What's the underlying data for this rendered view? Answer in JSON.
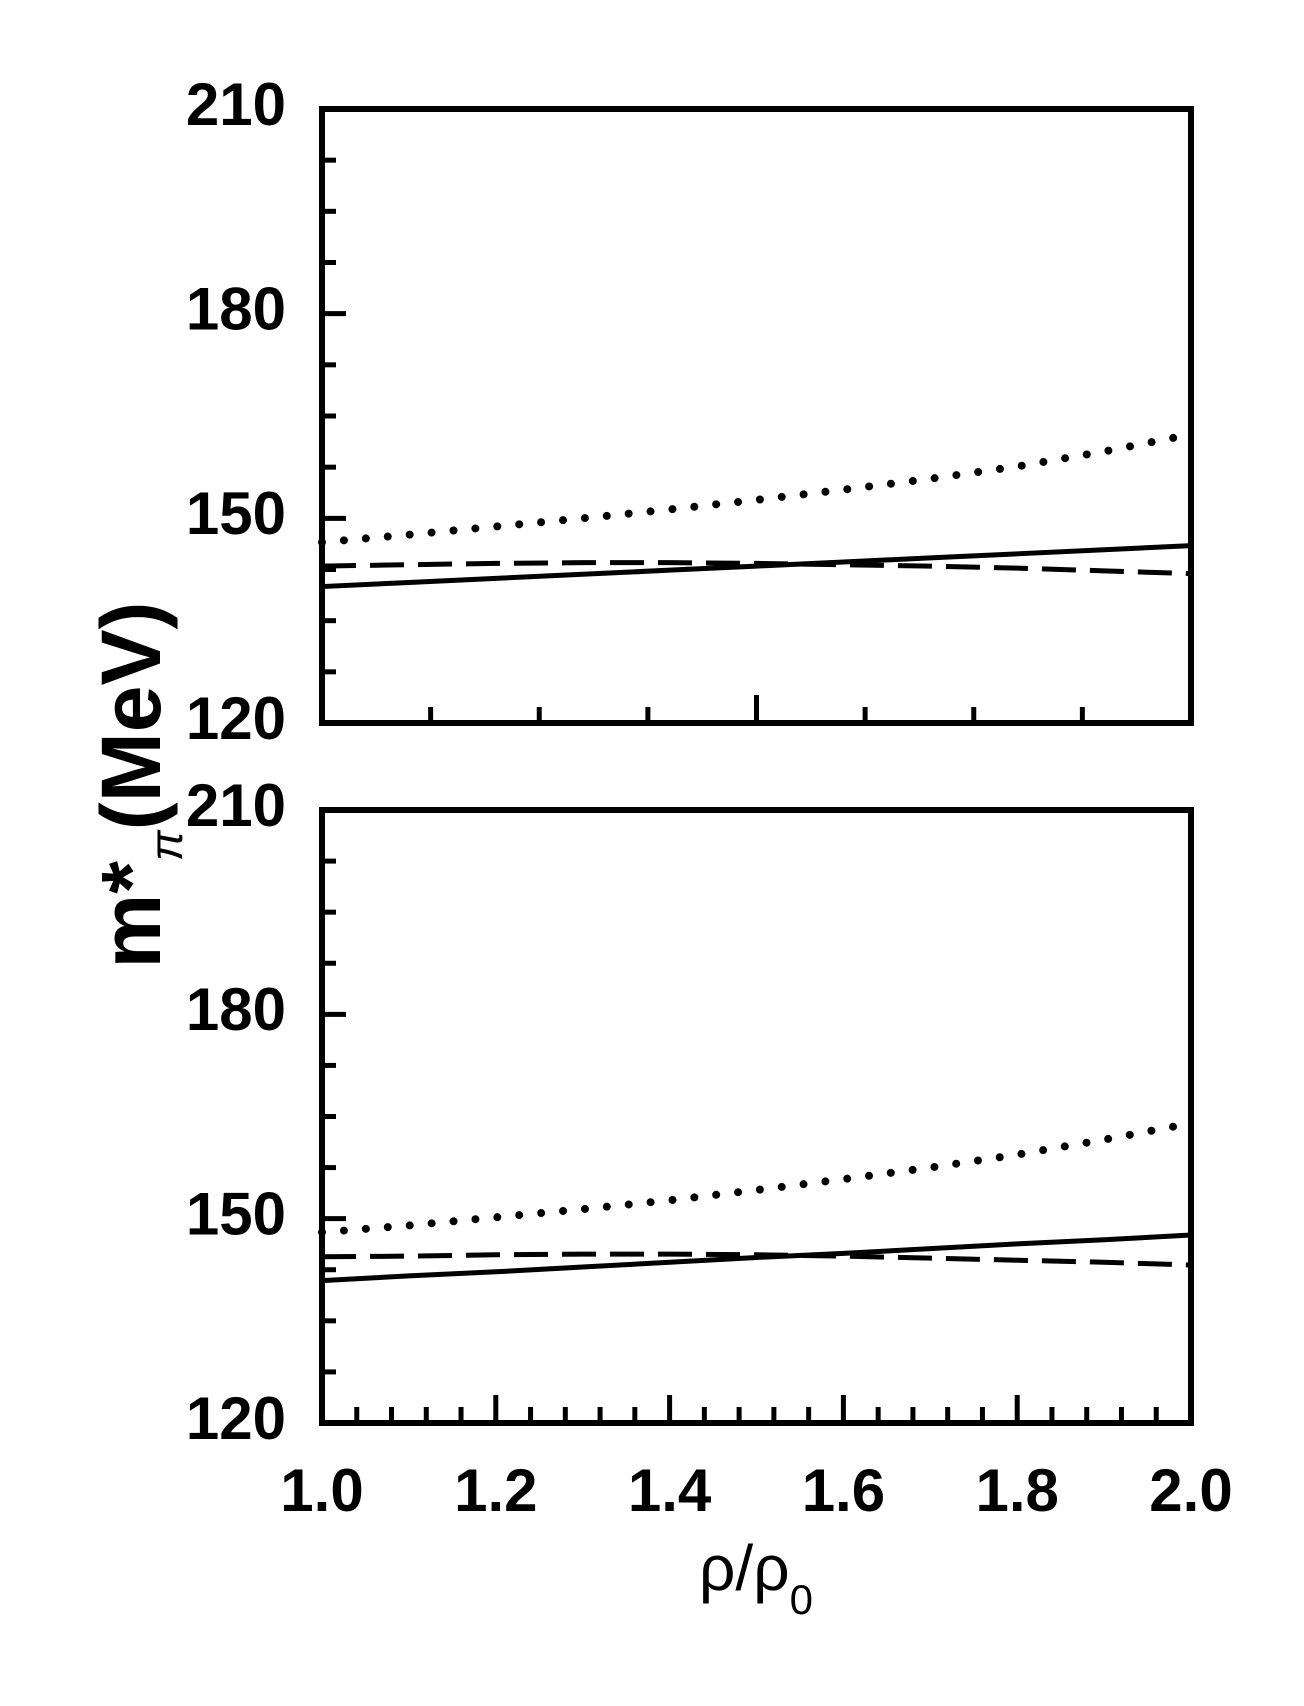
{
  "chart_data": [
    {
      "type": "line",
      "y_label": {
        "main": "m*",
        "sub": "π",
        "unit": "(MeV)"
      },
      "x": [
        1.0,
        1.1,
        1.2,
        1.3,
        1.4,
        1.5,
        1.6,
        1.7,
        1.8,
        1.9,
        2.0
      ],
      "series": [
        {
          "color": "#000000",
          "style": "solid",
          "values": [
            140.0,
            140.6,
            141.2,
            141.8,
            142.4,
            143.0,
            143.6,
            144.2,
            144.8,
            145.4,
            146.0
          ]
        },
        {
          "color": "#000000",
          "style": "dashed",
          "values": [
            143.0,
            143.2,
            143.4,
            143.5,
            143.5,
            143.4,
            143.2,
            143.0,
            142.7,
            142.3,
            141.9
          ]
        },
        {
          "color": "#000000",
          "style": "dotted",
          "values": [
            146.5,
            147.6,
            148.8,
            150.0,
            151.3,
            152.7,
            154.2,
            155.8,
            157.6,
            159.8,
            162.3
          ]
        }
      ],
      "xlim": [
        1.0,
        2.0
      ],
      "xticks": [
        1.5
      ],
      "xminor": [
        1.125,
        1.25,
        1.375,
        1.625,
        1.75,
        1.875
      ],
      "xtick_labels": false,
      "ylim": [
        120,
        210
      ],
      "yticks": [
        120,
        150,
        180,
        210
      ],
      "yminor": [
        127.5,
        135,
        142.5,
        157.5,
        165,
        172.5,
        187.5,
        195,
        202.5
      ]
    },
    {
      "type": "line",
      "x_label": {
        "main": "ρ/ρ",
        "sub": "0"
      },
      "x": [
        1.0,
        1.1,
        1.2,
        1.3,
        1.4,
        1.5,
        1.6,
        1.7,
        1.8,
        1.9,
        2.0
      ],
      "series": [
        {
          "color": "#000000",
          "style": "solid",
          "values": [
            140.9,
            141.6,
            142.2,
            142.9,
            143.6,
            144.3,
            144.9,
            145.6,
            146.3,
            146.9,
            147.6
          ]
        },
        {
          "color": "#000000",
          "style": "dashed",
          "values": [
            144.4,
            144.5,
            144.7,
            144.8,
            144.8,
            144.7,
            144.5,
            144.2,
            143.9,
            143.6,
            143.2
          ]
        },
        {
          "color": "#000000",
          "style": "dotted",
          "values": [
            148.0,
            149.0,
            150.2,
            151.4,
            152.7,
            154.2,
            155.8,
            157.5,
            159.4,
            161.6,
            164.0
          ]
        }
      ],
      "xlim": [
        1.0,
        2.0
      ],
      "xticks": [
        {
          "value": 1.0,
          "label": "1.0"
        },
        {
          "value": 1.2,
          "label": "1.2"
        },
        {
          "value": 1.4,
          "label": "1.4"
        },
        {
          "value": 1.6,
          "label": "1.6"
        },
        {
          "value": 1.8,
          "label": "1.8"
        },
        {
          "value": 2.0,
          "label": "2.0"
        }
      ],
      "xminor": [
        1.04,
        1.08,
        1.12,
        1.16,
        1.24,
        1.28,
        1.32,
        1.36,
        1.44,
        1.48,
        1.52,
        1.56,
        1.64,
        1.68,
        1.72,
        1.76,
        1.84,
        1.88,
        1.92,
        1.96
      ],
      "xtick_labels": true,
      "ylim": [
        120,
        210
      ],
      "yticks": [
        120,
        150,
        180,
        210
      ],
      "yminor": [
        127.5,
        135,
        142.5,
        157.5,
        165,
        172.5,
        187.5,
        195,
        202.5
      ]
    }
  ]
}
